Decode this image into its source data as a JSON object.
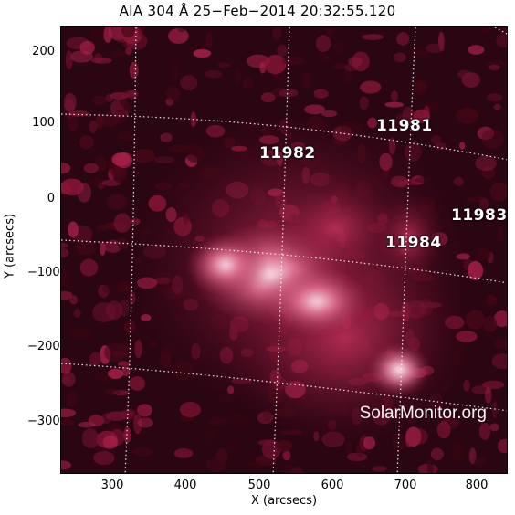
{
  "title": "AIA 304 Å 25−Feb−2014 20:32:55.120",
  "xlabel": "X (arcsecs)",
  "ylabel": "Y (arcsecs)",
  "x_ticks": [
    "300",
    "400",
    "500",
    "600",
    "700",
    "800"
  ],
  "y_ticks": [
    "200",
    "100",
    "0",
    "−100",
    "−200",
    "−300"
  ],
  "active_regions": [
    "11981",
    "11982",
    "11983",
    "11984"
  ],
  "watermark": "SolarMonitor.org",
  "colors": {
    "background": "#ffffff",
    "image_dark": "#1a0008",
    "image_mid": "#8c1638",
    "image_bright": "#ffe6ef",
    "grid": "#ffffff"
  }
}
